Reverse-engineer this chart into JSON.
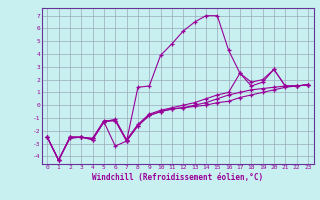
{
  "xlabel": "Windchill (Refroidissement éolien,°C)",
  "bg_color": "#c8f0f0",
  "line_color": "#990099",
  "grid_color": "#99aabb",
  "spine_color": "#663399",
  "xlim": [
    -0.5,
    23.5
  ],
  "ylim": [
    -4.6,
    7.6
  ],
  "xticks": [
    0,
    1,
    2,
    3,
    4,
    5,
    6,
    7,
    8,
    9,
    10,
    11,
    12,
    13,
    14,
    15,
    16,
    17,
    18,
    19,
    20,
    21,
    22,
    23
  ],
  "yticks": [
    -4,
    -3,
    -2,
    -1,
    0,
    1,
    2,
    3,
    4,
    5,
    6,
    7
  ],
  "lines": [
    {
      "x": [
        0,
        1,
        2,
        3,
        4,
        5,
        6,
        7,
        8,
        9,
        10,
        11,
        12,
        13,
        14,
        15,
        16,
        17,
        18,
        19,
        20,
        21,
        22,
        23
      ],
      "y": [
        -2.5,
        -4.3,
        -2.6,
        -2.5,
        -2.6,
        -1.2,
        -1.2,
        -2.8,
        1.4,
        1.5,
        3.9,
        4.8,
        5.8,
        6.5,
        7.0,
        7.0,
        4.3,
        2.5,
        1.8,
        2.0,
        2.8,
        1.5,
        1.5,
        1.6
      ]
    },
    {
      "x": [
        0,
        1,
        2,
        3,
        4,
        5,
        6,
        7,
        8,
        9,
        10,
        11,
        12,
        13,
        14,
        15,
        16,
        17,
        18,
        19,
        20,
        21,
        22,
        23
      ],
      "y": [
        -2.5,
        -4.3,
        -2.5,
        -2.5,
        -2.7,
        -1.3,
        -3.2,
        -2.8,
        -1.6,
        -0.8,
        -0.5,
        -0.3,
        -0.2,
        -0.1,
        0.0,
        0.2,
        0.3,
        0.6,
        0.8,
        1.0,
        1.2,
        1.4,
        1.5,
        1.6
      ]
    },
    {
      "x": [
        0,
        1,
        2,
        3,
        4,
        5,
        6,
        7,
        8,
        9,
        10,
        11,
        12,
        13,
        14,
        15,
        16,
        17,
        18,
        19,
        20,
        21,
        22,
        23
      ],
      "y": [
        -2.5,
        -4.3,
        -2.5,
        -2.5,
        -2.7,
        -1.3,
        -1.2,
        -2.8,
        -1.6,
        -0.8,
        -0.5,
        -0.3,
        -0.2,
        0.0,
        0.2,
        0.5,
        0.8,
        1.0,
        1.2,
        1.3,
        1.4,
        1.5,
        1.5,
        1.6
      ]
    },
    {
      "x": [
        0,
        1,
        2,
        3,
        4,
        5,
        6,
        7,
        8,
        9,
        10,
        11,
        12,
        13,
        14,
        15,
        16,
        17,
        18,
        19,
        20,
        21,
        22,
        23
      ],
      "y": [
        -2.5,
        -4.3,
        -2.5,
        -2.5,
        -2.6,
        -1.3,
        -1.1,
        -2.7,
        -1.5,
        -0.7,
        -0.4,
        -0.2,
        0.0,
        0.2,
        0.5,
        0.8,
        1.0,
        2.5,
        1.5,
        1.8,
        2.8,
        1.5,
        1.5,
        1.6
      ]
    }
  ]
}
